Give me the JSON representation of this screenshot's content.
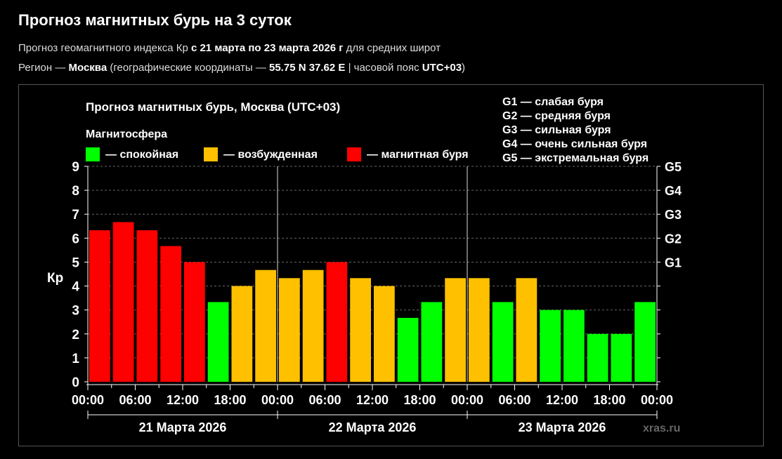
{
  "header": {
    "title": "Прогноз магнитных бурь на 3 суток",
    "line1_prefix": "Прогноз геомагнитного индекса Кр ",
    "line1_bold": "с 21 марта по 23 марта 2026 г",
    "line1_suffix": " для средних широт",
    "line2_prefix": "Регион — ",
    "line2_region": "Москва",
    "line2_mid": " (географические координаты — ",
    "line2_coords": "55.75 N 37.62 E",
    "line2_mid2": " | часовой пояс ",
    "line2_tz": "UTC+03",
    "line2_suffix": ")"
  },
  "chart_data": {
    "type": "bar",
    "title": "Прогноз магнитных бурь, Москва (UTC+03)",
    "legend_title": "Магнитосфера",
    "legend": [
      {
        "label": "— спокойная",
        "color": "#00ff00"
      },
      {
        "label": "— возбужденная",
        "color": "#ffc000"
      },
      {
        "label": "— магнитная буря",
        "color": "#ff0000"
      }
    ],
    "g_legend": [
      "G1 — слабая буря",
      "G2 — средняя буря",
      "G3 — сильная буря",
      "G4 — очень сильная буря",
      "G5 — экстремальная буря"
    ],
    "ylabel": "Кр",
    "ylim": [
      0,
      9
    ],
    "yticks": [
      "0",
      "1",
      "2",
      "3",
      "4",
      "5",
      "6",
      "7",
      "8",
      "9"
    ],
    "g_axis": [
      {
        "label": "G1",
        "kp": 5
      },
      {
        "label": "G2",
        "kp": 6
      },
      {
        "label": "G3",
        "kp": 7
      },
      {
        "label": "G4",
        "kp": 8
      },
      {
        "label": "G5",
        "kp": 9
      }
    ],
    "xticks": [
      "00:00",
      "06:00",
      "12:00",
      "18:00",
      "00:00",
      "06:00",
      "12:00",
      "18:00",
      "00:00",
      "06:00",
      "12:00",
      "18:00",
      "00:00"
    ],
    "days": [
      "21 Марта 2026",
      "22 Марта 2026",
      "23 Марта 2026"
    ],
    "colors": {
      "quiet": "#00ff00",
      "active": "#ffc000",
      "storm": "#ff0000"
    },
    "values": [
      6.33,
      6.67,
      6.33,
      5.67,
      5.0,
      3.33,
      4.0,
      4.67,
      4.33,
      4.67,
      5.0,
      4.33,
      4.0,
      2.67,
      3.33,
      4.33,
      4.33,
      3.33,
      4.33,
      3.0,
      3.0,
      2.0,
      2.0,
      3.33
    ],
    "levels": [
      "storm",
      "storm",
      "storm",
      "storm",
      "storm",
      "quiet",
      "active",
      "active",
      "active",
      "active",
      "storm",
      "active",
      "active",
      "quiet",
      "quiet",
      "active",
      "active",
      "quiet",
      "active",
      "quiet",
      "quiet",
      "quiet",
      "quiet",
      "quiet"
    ],
    "watermark": "xras.ru",
    "grid": true
  }
}
